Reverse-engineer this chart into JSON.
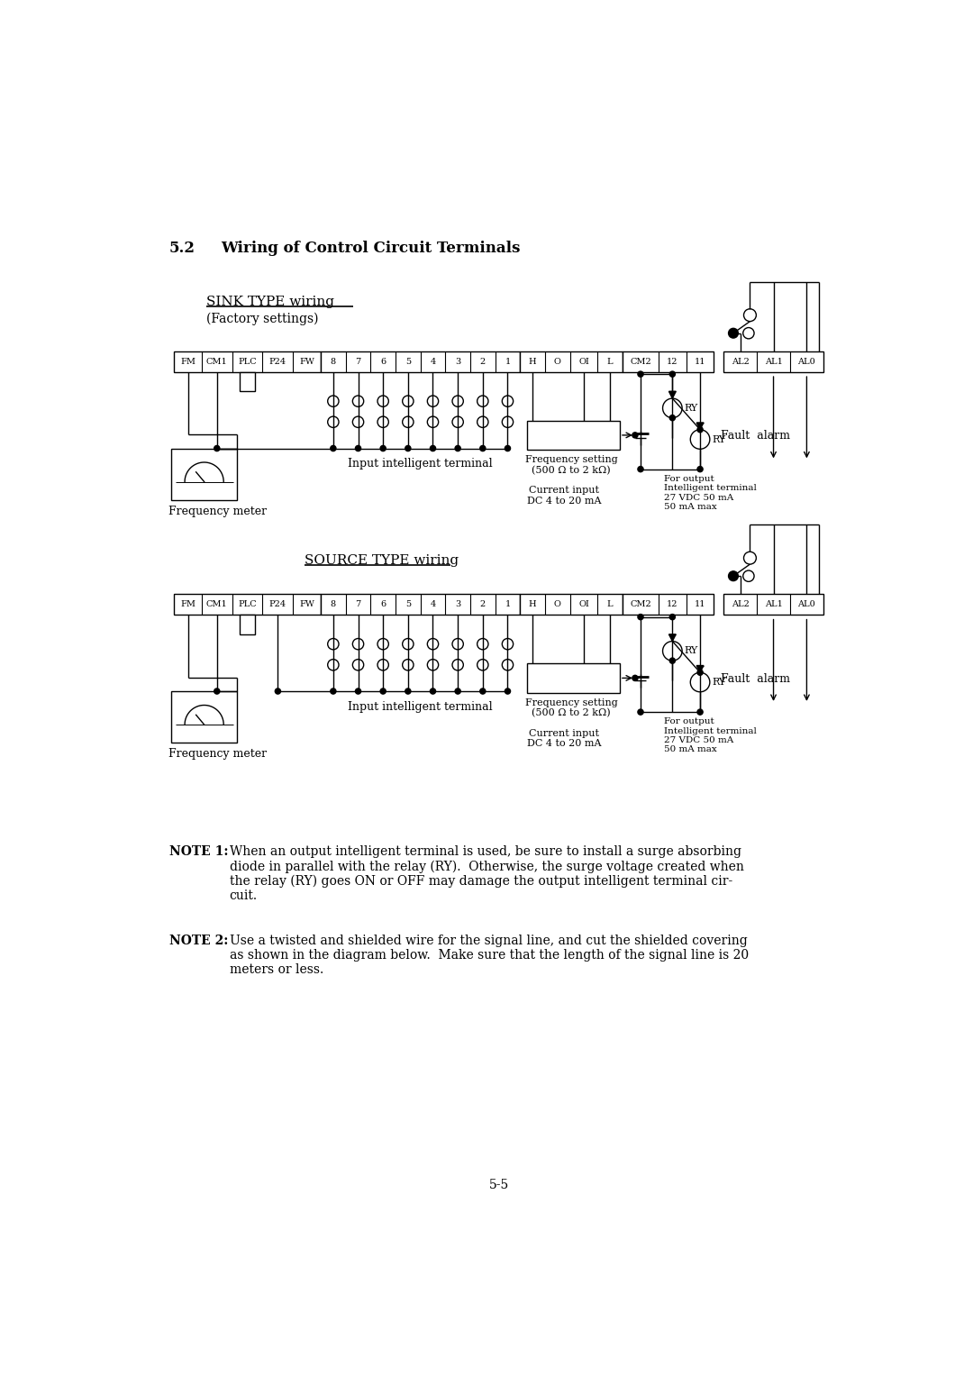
{
  "title_num": "5.2",
  "title_text": "Wiring of Control Circuit Terminals",
  "sink_title": "SINK TYPE wiring",
  "sink_subtitle": "(Factory settings)",
  "source_title": "SOURCE TYPE wiring",
  "terminals": [
    "FM",
    "CM1",
    "PLC",
    "P24",
    "FW",
    "8",
    "7",
    "6",
    "5",
    "4",
    "3",
    "2",
    "1",
    "H",
    "O",
    "OI",
    "L",
    "CM2",
    "12",
    "11",
    "AL2",
    "AL1",
    "AL0"
  ],
  "note1_label": "NOTE 1:",
  "note1_text": "When an output intelligent terminal is used, be sure to install a surge absorbing\ndiode in parallel with the relay (RY).  Otherwise, the surge voltage created when\nthe relay (RY) goes ON or OFF may damage the output intelligent terminal cir-\ncuit.",
  "note2_label": "NOTE 2:",
  "note2_text": "Use a twisted and shielded wire for the signal line, and cut the shielded covering\nas shown in the diagram below.  Make sure that the length of the signal line is 20\nmeters or less.",
  "page_number": "5-5",
  "freq_setting_text": "Frequency setting\n(500 Ω to 2 kΩ)",
  "current_input_text": "Current input\nDC 4 to 20 mA",
  "input_terminal_text": "Input intelligent terminal",
  "for_output_text": "For output\nIntelligent terminal\n27 VDC 50 mA\n50 mA max",
  "fault_alarm_text": "Fault  alarm",
  "freq_meter_text": "Frequency meter",
  "bg_color": "#ffffff",
  "line_color": "#000000"
}
